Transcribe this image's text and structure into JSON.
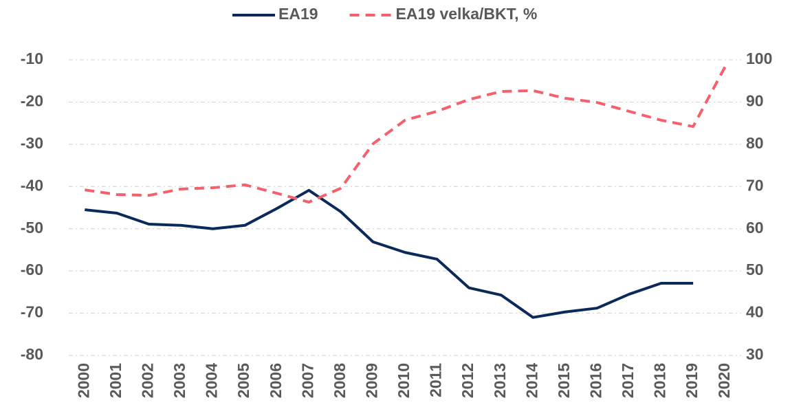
{
  "chart_data": {
    "type": "line",
    "categories": [
      "2000",
      "2001",
      "2002",
      "2003",
      "2004",
      "2005",
      "2006",
      "2007",
      "2008",
      "2009",
      "2010",
      "2011",
      "2012",
      "2013",
      "2014",
      "2015",
      "2016",
      "2017",
      "2018",
      "2019",
      "2020"
    ],
    "series": [
      {
        "name": "EA19",
        "color": "#0b2a5a",
        "dash": false,
        "values": [
          -45.5,
          -46.3,
          -48.9,
          -49.2,
          -50.0,
          -49.2,
          -45.2,
          -40.9,
          -46.0,
          -53.1,
          -55.6,
          -57.2,
          -64.0,
          -65.7,
          -71.0,
          -69.7,
          -68.8,
          -65.5,
          -62.9,
          -62.9,
          null
        ]
      },
      {
        "name": "EA19 velka/BKT, %",
        "color": "#f4606c",
        "dash": true,
        "axis": "y2",
        "values": [
          69.2,
          68.1,
          67.9,
          69.4,
          69.7,
          70.4,
          68.4,
          66.3,
          69.6,
          80.1,
          85.7,
          87.8,
          90.6,
          92.5,
          92.7,
          90.9,
          89.9,
          87.8,
          85.7,
          84.2,
          98.4
        ]
      }
    ],
    "ylim": [
      -80,
      -10
    ],
    "yticks": [
      -80,
      -70,
      -60,
      -50,
      -40,
      -30,
      -20,
      -10
    ],
    "y2lim": [
      30,
      100
    ],
    "y2ticks": [
      30,
      40,
      50,
      60,
      70,
      80,
      90,
      100
    ],
    "grid": true,
    "legend": "top"
  }
}
